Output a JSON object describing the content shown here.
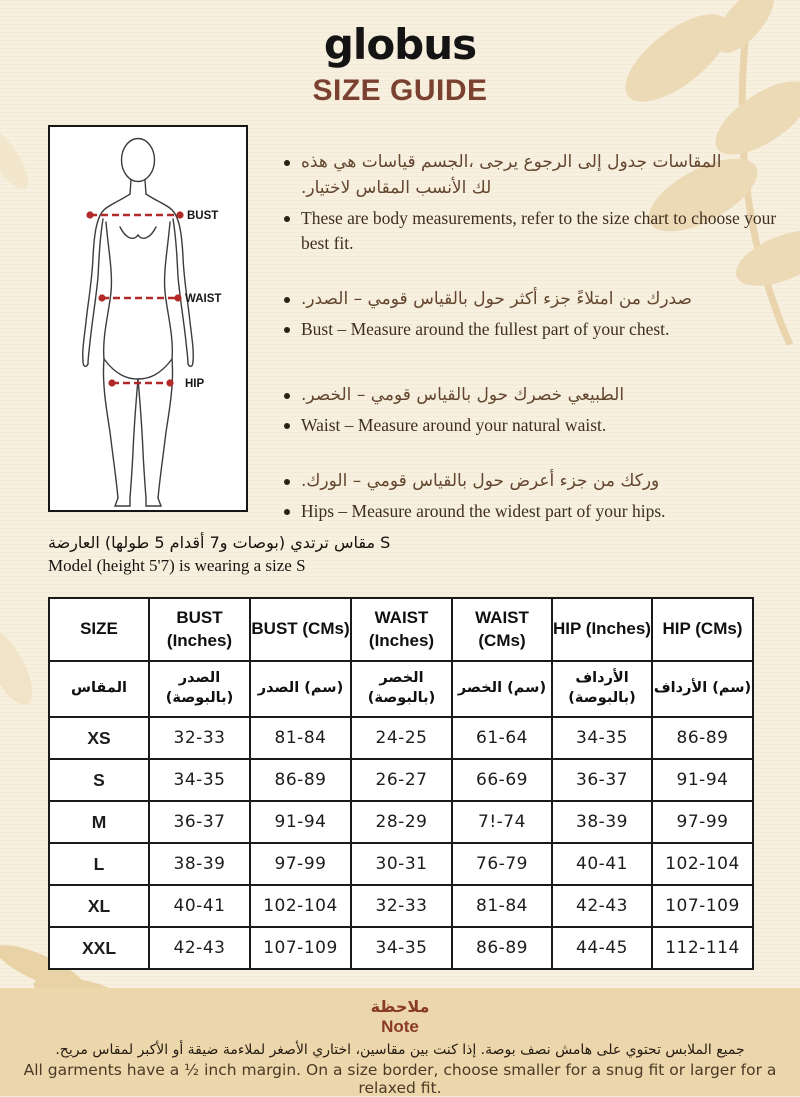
{
  "header": {
    "brand": "globus",
    "title": "SIZE GUIDE"
  },
  "figure": {
    "labels": {
      "bust": "BUST",
      "waist": "WAIST",
      "hip": "HIP"
    }
  },
  "bullets": [
    {
      "ar": "هذه هي قياسات الجسم، يرجى الرجوع إلى جدول المقاسات\n.لاختيار المقاس الأنسب لك",
      "en": "These are body measurements, refer to the size chart to choose your best fit."
    },
    {
      "ar": ".الصدر – قومي بالقياس حول أكثر جزء امتلاءً من صدرك",
      "en": "Bust – Measure around the fullest part of your chest."
    },
    {
      "ar": ".الخصر – قومي بالقياس حول خصرك الطبيعي",
      "en": "Waist – Measure around your natural waist."
    },
    {
      "ar": ".الورك – قومي بالقياس حول أعرض جزء من وركك",
      "en": "Hips – Measure around the widest part of your hips."
    }
  ],
  "model_note": {
    "ar": "العارضة (طولها 5 أقدام و7 بوصات) ترتدي مقاس S",
    "en": "Model (height 5'7) is wearing a size S"
  },
  "table": {
    "headers_en": [
      "SIZE",
      "BUST (Inches)",
      "BUST (CMs)",
      "WAIST (Inches)",
      "WAIST (CMs)",
      "HIP (Inches)",
      "HIP (CMs)"
    ],
    "headers_ar": [
      "المقاس",
      "الصدر (بالبوصة)",
      "الصدر (سم)",
      "الخصر (بالبوصة)",
      "الخصر (سم)",
      "الأرداف (بالبوصة)",
      "الأرداف (سم)"
    ],
    "rows": [
      {
        "size": "XS",
        "values": [
          "32-33",
          "81-84",
          "24-25",
          "61-64",
          "34-35",
          "86-89"
        ]
      },
      {
        "size": "S",
        "values": [
          "34-35",
          "86-89",
          "26-27",
          "66-69",
          "36-37",
          "91-94"
        ]
      },
      {
        "size": "M",
        "values": [
          "36-37",
          "91-94",
          "28-29",
          "7!-74",
          "38-39",
          "97-99"
        ]
      },
      {
        "size": "L",
        "values": [
          "38-39",
          "97-99",
          "30-31",
          "76-79",
          "40-41",
          "102-104"
        ]
      },
      {
        "size": "XL",
        "values": [
          "40-41",
          "102-104",
          "32-33",
          "81-84",
          "42-43",
          "107-109"
        ]
      },
      {
        "size": "XXL",
        "values": [
          "42-43",
          "107-109",
          "34-35",
          "86-89",
          "44-45",
          "112-114"
        ]
      }
    ]
  },
  "footer": {
    "title_ar": "ملاحظة",
    "title_en": "Note",
    "body_ar": "جميع الملابس تحتوي على هامش نصف بوصة. إذا كنت بين مقاسين، اختاري الأصغر لملاءمة ضيقة أو الأكبر لمقاس مريح.",
    "body_en": "All garments have a ½ inch margin. On a size border, choose smaller for a snug fit or larger for a relaxed fit."
  },
  "colors": {
    "page_bg": "#f7efde",
    "accent_brown": "#7b4130",
    "note_red": "#8a3a28",
    "measure_red": "#b22a2a",
    "footer_bg": "#ecd6ab",
    "leaf": "#ecd9b6"
  }
}
